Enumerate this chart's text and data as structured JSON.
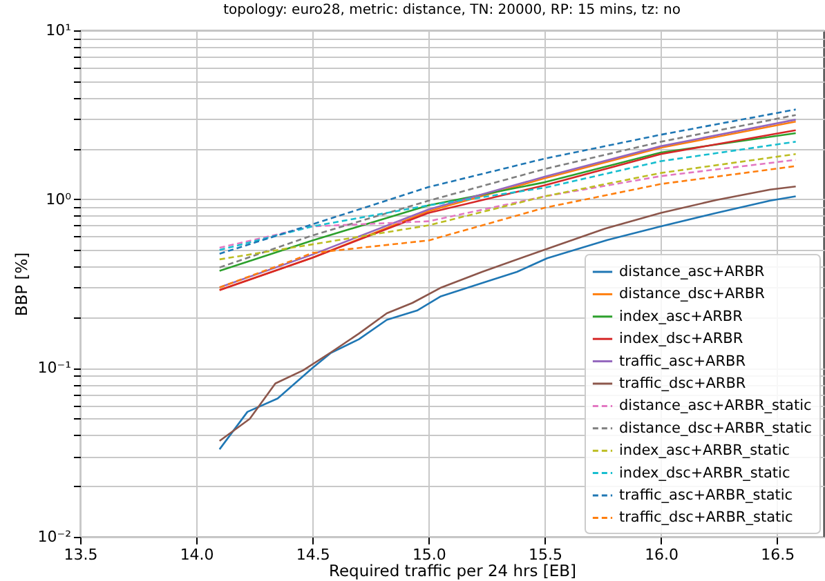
{
  "chart_data": {
    "type": "line",
    "title": "topology: euro28, metric: distance, TN: 20000, RP: 15 mins, tz: no",
    "xlabel": "Required traffic per 24 hrs [EB]",
    "ylabel": "BBP [%]",
    "log": "y",
    "grid": true,
    "legend": "bottom right",
    "marker": "none",
    "xlim": [
      13.5,
      16.7
    ],
    "xticks": [
      13.5,
      {
        "value": 14,
        "label": "14.0"
      },
      14.5,
      {
        "value": 15,
        "label": "15.0"
      },
      15.5,
      {
        "value": 16,
        "label": "16.0"
      },
      16.5
    ],
    "ylim": [
      0.01,
      10
    ],
    "yticks": [
      {
        "value": 0.01,
        "label": "10⁻²"
      },
      {
        "value": 0.02,
        "label": null
      },
      {
        "value": 0.03,
        "label": null
      },
      {
        "value": 0.04,
        "label": null
      },
      {
        "value": 0.05,
        "label": null
      },
      {
        "value": 0.06,
        "label": null
      },
      {
        "value": 0.07,
        "label": null
      },
      {
        "value": 0.08,
        "label": null
      },
      {
        "value": 0.09,
        "label": null
      },
      {
        "value": 0.1,
        "label": "10⁻¹"
      },
      {
        "value": 0.2,
        "label": null
      },
      {
        "value": 0.3,
        "label": null
      },
      {
        "value": 0.4,
        "label": null
      },
      {
        "value": 0.5,
        "label": null
      },
      {
        "value": 0.6,
        "label": null
      },
      {
        "value": 0.7,
        "label": null
      },
      {
        "value": 0.8,
        "label": null
      },
      {
        "value": 0.9,
        "label": null
      },
      {
        "value": 1,
        "label": "10⁰"
      },
      {
        "value": 2,
        "label": null
      },
      {
        "value": 3,
        "label": null
      },
      {
        "value": 4,
        "label": null
      },
      {
        "value": 5,
        "label": null
      },
      {
        "value": 6,
        "label": null
      },
      {
        "value": 7,
        "label": null
      },
      {
        "value": 8,
        "label": null
      },
      {
        "value": 9,
        "label": null
      },
      {
        "value": 10,
        "label": "10¹"
      }
    ],
    "x": [
      14.1,
      14.5,
      15.0,
      15.5,
      16.0,
      16.58
    ],
    "series": [
      {
        "name": "distance_asc+ARBR",
        "color": "#1f77b4",
        "line_style": "solid",
        "x": [
          14.1,
          14.22,
          14.35,
          14.5,
          14.58,
          14.7,
          14.82,
          14.95,
          15.05,
          15.25,
          15.38,
          15.51,
          15.77,
          16.0,
          16.24,
          16.47,
          16.58
        ],
        "values": [
          0.033,
          0.055,
          0.066,
          0.1,
          0.123,
          0.148,
          0.193,
          0.219,
          0.265,
          0.325,
          0.371,
          0.447,
          0.573,
          0.69,
          0.83,
          0.98,
          1.04
        ]
      },
      {
        "name": "distance_dsc+ARBR",
        "color": "#ff7f0e",
        "line_style": "solid",
        "values": [
          0.29,
          0.45,
          0.85,
          1.33,
          2.02,
          2.88
        ]
      },
      {
        "name": "index_asc+ARBR",
        "color": "#2ca02c",
        "line_style": "solid",
        "values": [
          0.376,
          0.57,
          0.92,
          1.26,
          1.89,
          2.46
        ]
      },
      {
        "name": "index_dsc+ARBR",
        "color": "#d62728",
        "line_style": "solid",
        "values": [
          0.289,
          0.45,
          0.83,
          1.21,
          1.85,
          2.56
        ]
      },
      {
        "name": "traffic_asc+ARBR",
        "color": "#9467bd",
        "line_style": "solid",
        "values": [
          0.3,
          0.47,
          0.87,
          1.36,
          2.06,
          2.96
        ]
      },
      {
        "name": "traffic_dsc+ARBR",
        "color": "#8c564b",
        "line_style": "solid",
        "x": [
          14.1,
          14.23,
          14.34,
          14.46,
          14.58,
          14.7,
          14.82,
          14.93,
          15.05,
          15.23,
          15.53,
          15.76,
          16.0,
          16.24,
          16.47,
          16.58
        ],
        "values": [
          0.037,
          0.05,
          0.081,
          0.097,
          0.124,
          0.16,
          0.211,
          0.243,
          0.298,
          0.371,
          0.52,
          0.67,
          0.83,
          0.99,
          1.14,
          1.19
        ]
      },
      {
        "name": "distance_asc+ARBR_static",
        "color": "#e377c2",
        "line_style": "dashed",
        "values": [
          0.516,
          0.69,
          0.74,
          1.04,
          1.37,
          1.71
        ]
      },
      {
        "name": "distance_dsc+ARBR_static",
        "color": "#7f7f7f",
        "line_style": "dashed",
        "values": [
          0.394,
          0.61,
          0.98,
          1.51,
          2.19,
          3.15
        ]
      },
      {
        "name": "index_asc+ARBR_static",
        "color": "#bcbd22",
        "line_style": "dashed",
        "values": [
          0.44,
          0.54,
          0.7,
          1.04,
          1.43,
          1.85
        ]
      },
      {
        "name": "index_dsc+ARBR_static",
        "color": "#17becf",
        "line_style": "dashed",
        "values": [
          0.5,
          0.69,
          0.92,
          1.17,
          1.68,
          2.19
        ]
      },
      {
        "name": "traffic_asc+ARBR_static",
        "color": "#1f77b4",
        "line_style": "dashed",
        "values": [
          0.475,
          0.71,
          1.18,
          1.74,
          2.41,
          3.4
        ]
      },
      {
        "name": "traffic_dsc+ARBR_static",
        "color": "#ff7f0e",
        "line_style": "dashed",
        "values": [
          0.3,
          0.48,
          0.57,
          0.89,
          1.23,
          1.57
        ]
      }
    ]
  }
}
